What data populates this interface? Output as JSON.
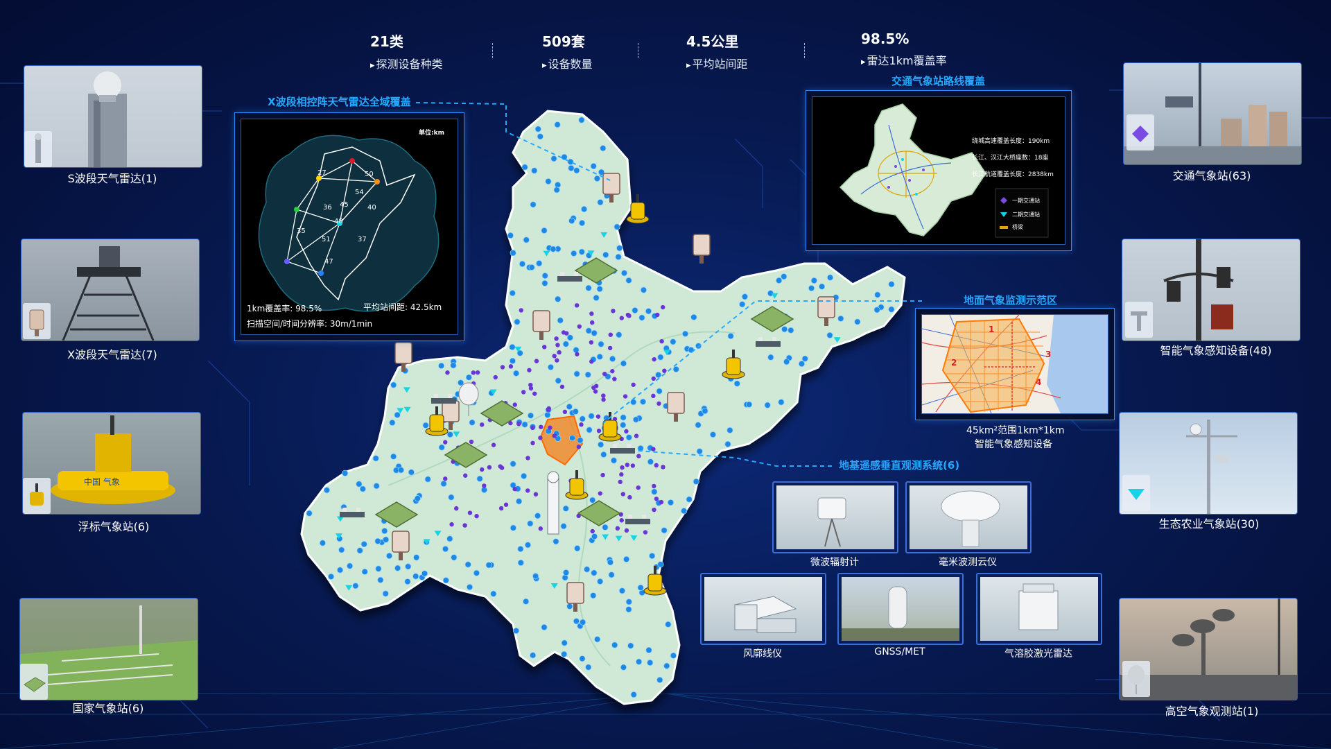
{
  "stats": [
    {
      "value": "21类",
      "label": "探测设备种类"
    },
    {
      "value": "509套",
      "label": "设备数量"
    },
    {
      "value": "4.5公里",
      "label": "平均站间距"
    },
    {
      "value": "98.5%",
      "label": "雷达1km覆盖率"
    }
  ],
  "left_cards": [
    {
      "label": "S波段天气雷达(1)",
      "icon": "radar-tower-icon"
    },
    {
      "label": "X波段天气雷达(7)",
      "icon": "x-radar-icon"
    },
    {
      "label": "浮标气象站(6)",
      "icon": "buoy-icon"
    },
    {
      "label": "国家气象站(6)",
      "icon": "station-grid-icon"
    }
  ],
  "right_cards": [
    {
      "label": "交通气象站(63)",
      "icon": "purple-diamond-icon"
    },
    {
      "label": "智能气象感知设备(48)",
      "icon": "t-sensor-icon"
    },
    {
      "label": "生态农业气象站(30)",
      "icon": "cyan-triangle-icon"
    },
    {
      "label": "高空气象观测站(1)",
      "icon": "balloon-icon"
    }
  ],
  "radar_panel": {
    "title": "X波段相控阵天气雷达全域覆盖",
    "unit": "单位:km",
    "distances": [
      "27",
      "50",
      "54",
      "45",
      "40",
      "36",
      "48",
      "35",
      "51",
      "37",
      "47"
    ],
    "coverage": "1km覆盖率:  98.5%",
    "spacing": "平均站间距:  42.5km",
    "resolution": "扫描空间/时间分辨率:  30m/1min"
  },
  "traffic_panel": {
    "title": "交通气象站路线覆盖",
    "stat1": "绕城高速覆盖长度：190km",
    "stat2": "长江、汉江大桥座数：18座",
    "stat3": "长江航道覆盖长度：2838km",
    "legend": [
      "一期交通站",
      "二期交通站",
      "桥梁"
    ]
  },
  "demo_panel": {
    "title": "地面气象监测示范区",
    "caption1": "45km²范围1km*1km",
    "caption2": "智能气象感知设备",
    "zones": [
      "1",
      "2",
      "3",
      "4"
    ]
  },
  "vertical_system": {
    "title": "地基遥感垂直观测系统(6)",
    "instruments": [
      "微波辐射计",
      "毫米波测云仪",
      "风廓线仪",
      "GNSS/MET",
      "气溶胶激光雷达"
    ]
  },
  "colors": {
    "accent": "#27a8ff",
    "background": "#071a52",
    "map_fill": "#cfe9d6",
    "dot_blue": "#1e88e5",
    "dot_purple": "#6a35d6",
    "cyan": "#18d3e6"
  }
}
